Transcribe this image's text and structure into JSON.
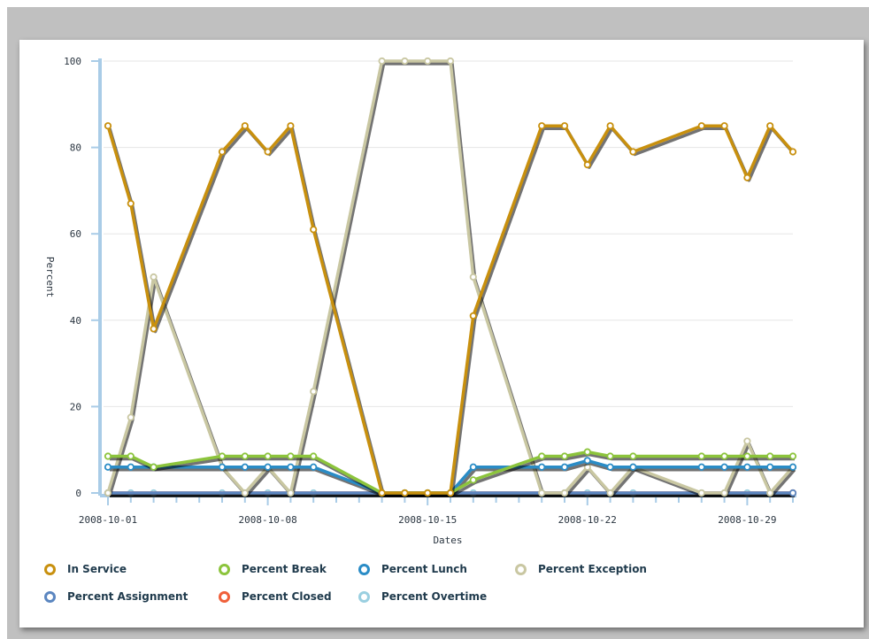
{
  "chart_data": {
    "type": "line",
    "xlabel": "Dates",
    "ylabel": "Percent",
    "ylim": [
      0,
      100
    ],
    "yticks": [
      0,
      20,
      40,
      60,
      80,
      100
    ],
    "xlim": [
      "2008-10-01",
      "2008-10-31"
    ],
    "xtick_labels": [
      "2008-10-01",
      "2008-10-08",
      "2008-10-15",
      "2008-10-22",
      "2008-10-29"
    ],
    "grid": "horizontal",
    "legend_position": "bottom",
    "series": [
      {
        "name": "In Service",
        "color": "#c8900e",
        "points": [
          [
            "2008-10-01",
            85
          ],
          [
            "2008-10-02",
            67
          ],
          [
            "2008-10-03",
            38
          ],
          [
            "2008-10-06",
            79
          ],
          [
            "2008-10-07",
            85
          ],
          [
            "2008-10-08",
            79
          ],
          [
            "2008-10-09",
            85
          ],
          [
            "2008-10-10",
            61
          ],
          [
            "2008-10-13",
            0
          ],
          [
            "2008-10-14",
            0
          ],
          [
            "2008-10-15",
            0
          ],
          [
            "2008-10-16",
            0
          ],
          [
            "2008-10-17",
            41
          ],
          [
            "2008-10-20",
            85
          ],
          [
            "2008-10-21",
            85
          ],
          [
            "2008-10-22",
            76
          ],
          [
            "2008-10-23",
            85
          ],
          [
            "2008-10-24",
            79
          ],
          [
            "2008-10-27",
            85
          ],
          [
            "2008-10-28",
            85
          ],
          [
            "2008-10-29",
            73
          ],
          [
            "2008-10-30",
            85
          ],
          [
            "2008-10-31",
            79
          ]
        ]
      },
      {
        "name": "Percent Break",
        "color": "#8cc43c",
        "points": [
          [
            "2008-10-01",
            8.5
          ],
          [
            "2008-10-02",
            8.5
          ],
          [
            "2008-10-03",
            6
          ],
          [
            "2008-10-06",
            8.5
          ],
          [
            "2008-10-07",
            8.5
          ],
          [
            "2008-10-08",
            8.5
          ],
          [
            "2008-10-09",
            8.5
          ],
          [
            "2008-10-10",
            8.5
          ],
          [
            "2008-10-13",
            0
          ],
          [
            "2008-10-14",
            0
          ],
          [
            "2008-10-15",
            0
          ],
          [
            "2008-10-16",
            0
          ],
          [
            "2008-10-17",
            3
          ],
          [
            "2008-10-20",
            8.5
          ],
          [
            "2008-10-21",
            8.5
          ],
          [
            "2008-10-22",
            9.5
          ],
          [
            "2008-10-23",
            8.5
          ],
          [
            "2008-10-24",
            8.5
          ],
          [
            "2008-10-27",
            8.5
          ],
          [
            "2008-10-28",
            8.5
          ],
          [
            "2008-10-29",
            8.5
          ],
          [
            "2008-10-30",
            8.5
          ],
          [
            "2008-10-31",
            8.5
          ]
        ]
      },
      {
        "name": "Percent Lunch",
        "color": "#2a8cc6",
        "points": [
          [
            "2008-10-01",
            6
          ],
          [
            "2008-10-02",
            6
          ],
          [
            "2008-10-03",
            6
          ],
          [
            "2008-10-06",
            6
          ],
          [
            "2008-10-07",
            6
          ],
          [
            "2008-10-08",
            6
          ],
          [
            "2008-10-09",
            6
          ],
          [
            "2008-10-10",
            6
          ],
          [
            "2008-10-13",
            0
          ],
          [
            "2008-10-14",
            0
          ],
          [
            "2008-10-15",
            0
          ],
          [
            "2008-10-16",
            0
          ],
          [
            "2008-10-17",
            6
          ],
          [
            "2008-10-20",
            6
          ],
          [
            "2008-10-21",
            6
          ],
          [
            "2008-10-22",
            7.5
          ],
          [
            "2008-10-23",
            6
          ],
          [
            "2008-10-24",
            6
          ],
          [
            "2008-10-27",
            6
          ],
          [
            "2008-10-28",
            6
          ],
          [
            "2008-10-29",
            6
          ],
          [
            "2008-10-30",
            6
          ],
          [
            "2008-10-31",
            6
          ]
        ]
      },
      {
        "name": "Percent Exception",
        "color": "#c9c7a2",
        "points": [
          [
            "2008-10-01",
            0
          ],
          [
            "2008-10-02",
            17.5
          ],
          [
            "2008-10-03",
            50
          ],
          [
            "2008-10-06",
            6
          ],
          [
            "2008-10-07",
            0
          ],
          [
            "2008-10-08",
            6
          ],
          [
            "2008-10-09",
            0
          ],
          [
            "2008-10-10",
            23.5
          ],
          [
            "2008-10-13",
            100
          ],
          [
            "2008-10-14",
            100
          ],
          [
            "2008-10-15",
            100
          ],
          [
            "2008-10-16",
            100
          ],
          [
            "2008-10-17",
            50
          ],
          [
            "2008-10-20",
            0
          ],
          [
            "2008-10-21",
            0
          ],
          [
            "2008-10-22",
            6
          ],
          [
            "2008-10-23",
            0
          ],
          [
            "2008-10-24",
            6
          ],
          [
            "2008-10-27",
            0
          ],
          [
            "2008-10-28",
            0
          ],
          [
            "2008-10-29",
            12
          ],
          [
            "2008-10-30",
            0
          ],
          [
            "2008-10-31",
            6
          ]
        ]
      },
      {
        "name": "Percent Assignment",
        "color": "#5b86c0",
        "points": [
          [
            "2008-10-01",
            0
          ],
          [
            "2008-10-31",
            0
          ]
        ]
      },
      {
        "name": "Percent Closed",
        "color": "#f0603a",
        "points": [
          [
            "2008-10-01",
            0
          ],
          [
            "2008-10-31",
            0
          ]
        ]
      },
      {
        "name": "Percent Overtime",
        "color": "#9acfe0",
        "points": [
          [
            "2008-10-01",
            0
          ],
          [
            "2008-10-02",
            0
          ],
          [
            "2008-10-03",
            0
          ],
          [
            "2008-10-06",
            0
          ],
          [
            "2008-10-07",
            0
          ],
          [
            "2008-10-08",
            0
          ],
          [
            "2008-10-09",
            0
          ],
          [
            "2008-10-10",
            0
          ],
          [
            "2008-10-13",
            0
          ],
          [
            "2008-10-14",
            0
          ],
          [
            "2008-10-15",
            0
          ],
          [
            "2008-10-16",
            0
          ],
          [
            "2008-10-17",
            0
          ],
          [
            "2008-10-20",
            0
          ],
          [
            "2008-10-21",
            0
          ],
          [
            "2008-10-22",
            0
          ],
          [
            "2008-10-23",
            0
          ],
          [
            "2008-10-24",
            0
          ],
          [
            "2008-10-27",
            0
          ],
          [
            "2008-10-28",
            0
          ],
          [
            "2008-10-29",
            0
          ],
          [
            "2008-10-30",
            0
          ],
          [
            "2008-10-31",
            0
          ]
        ]
      }
    ]
  }
}
